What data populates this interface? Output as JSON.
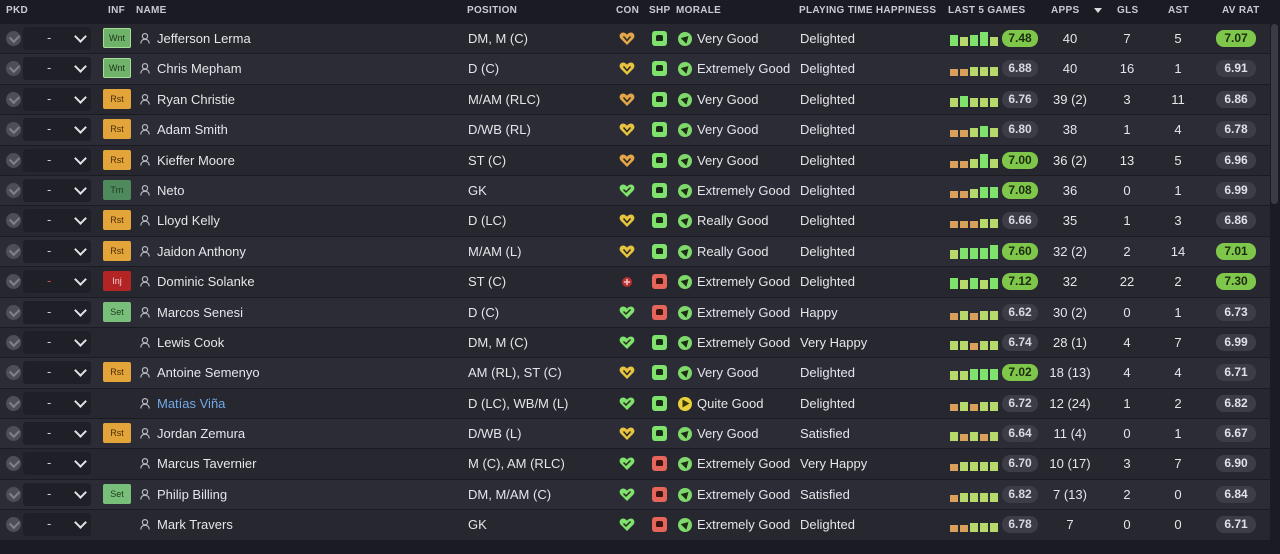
{
  "headers": {
    "pkd": "PKD",
    "inf": "INF",
    "name": "NAME",
    "position": "POSITION",
    "con": "CON",
    "shp": "SHP",
    "morale": "MORALE",
    "pth": "PLAYING TIME HAPPINESS",
    "last5": "LAST 5 GAMES",
    "apps": "APPS",
    "gls": "GLS",
    "ast": "AST",
    "avrat": "AV RAT"
  },
  "colors": {
    "form_green": "#7fe26d",
    "form_lightgreen": "#b7d86a",
    "form_orange": "#d9a05b",
    "form_red": "#d96a4a",
    "rating_green": "#7fc74a"
  },
  "players": [
    {
      "selection": "-",
      "inf": "Wnt",
      "name": "Jefferson Lerma",
      "position": "DM, M (C)",
      "con": "fit",
      "shp": "good",
      "morale": "Very Good",
      "pth": "Delighted",
      "form": [
        3,
        2,
        3,
        4,
        2
      ],
      "last5": "7.48",
      "last5_hi": true,
      "apps": "40",
      "gls": "7",
      "ast": "5",
      "avrat": "7.07",
      "avrat_hi": true
    },
    {
      "selection": "-",
      "inf": "Wnt",
      "name": "Chris Mepham",
      "position": "D (C)",
      "con": "ok",
      "shp": "good",
      "morale": "Extremely Good",
      "pth": "Delighted",
      "form": [
        1,
        1,
        2,
        2,
        2
      ],
      "last5": "6.88",
      "last5_hi": false,
      "apps": "40",
      "gls": "16",
      "ast": "1",
      "avrat": "6.91",
      "avrat_hi": false
    },
    {
      "selection": "-",
      "inf": "Rst",
      "name": "Ryan Christie",
      "position": "M/AM (RLC)",
      "con": "fit",
      "shp": "good",
      "morale": "Very Good",
      "pth": "Delighted",
      "form": [
        2,
        3,
        2,
        2,
        2
      ],
      "last5": "6.76",
      "last5_hi": false,
      "apps": "39 (2)",
      "gls": "3",
      "ast": "11",
      "avrat": "6.86",
      "avrat_hi": false
    },
    {
      "selection": "-",
      "inf": "Rst",
      "name": "Adam Smith",
      "position": "D/WB (RL)",
      "con": "ok",
      "shp": "good",
      "morale": "Very Good",
      "pth": "Delighted",
      "form": [
        1,
        1,
        2,
        3,
        2
      ],
      "last5": "6.80",
      "last5_hi": false,
      "apps": "38",
      "gls": "1",
      "ast": "4",
      "avrat": "6.78",
      "avrat_hi": false
    },
    {
      "selection": "-",
      "inf": "Rst",
      "name": "Kieffer Moore",
      "position": "ST (C)",
      "con": "fit",
      "shp": "good",
      "morale": "Very Good",
      "pth": "Delighted",
      "form": [
        1,
        1,
        2,
        4,
        2
      ],
      "last5": "7.00",
      "last5_hi": true,
      "apps": "36 (2)",
      "gls": "13",
      "ast": "5",
      "avrat": "6.96",
      "avrat_hi": false
    },
    {
      "selection": "-",
      "inf": "Trn",
      "name": "Neto",
      "position": "GK",
      "con": "full",
      "shp": "good",
      "morale": "Extremely Good",
      "pth": "Delighted",
      "form": [
        1,
        1,
        2,
        3,
        3
      ],
      "last5": "7.08",
      "last5_hi": true,
      "apps": "36",
      "gls": "0",
      "ast": "1",
      "avrat": "6.99",
      "avrat_hi": false
    },
    {
      "selection": "-",
      "inf": "Rst",
      "name": "Lloyd Kelly",
      "position": "D (LC)",
      "con": "ok",
      "shp": "good",
      "morale": "Really Good",
      "pth": "Delighted",
      "form": [
        1,
        1,
        1,
        2,
        2
      ],
      "last5": "6.66",
      "last5_hi": false,
      "apps": "35",
      "gls": "1",
      "ast": "3",
      "avrat": "6.86",
      "avrat_hi": false
    },
    {
      "selection": "-",
      "inf": "Rst",
      "name": "Jaidon Anthony",
      "position": "M/AM (L)",
      "con": "ok",
      "shp": "good",
      "morale": "Really Good",
      "pth": "Delighted",
      "form": [
        2,
        3,
        3,
        3,
        4
      ],
      "last5": "7.60",
      "last5_hi": true,
      "apps": "32 (2)",
      "gls": "2",
      "ast": "14",
      "avrat": "7.01",
      "avrat_hi": true
    },
    {
      "selection": "-",
      "inf": "Inj",
      "name": "Dominic Solanke",
      "position": "ST (C)",
      "con": "injured",
      "shp": "bad",
      "morale": "Extremely Good",
      "pth": "Delighted",
      "form": [
        3,
        2,
        3,
        2,
        3
      ],
      "last5": "7.12",
      "last5_hi": true,
      "apps": "32",
      "gls": "22",
      "ast": "2",
      "avrat": "7.30",
      "avrat_hi": true
    },
    {
      "selection": "-",
      "inf": "Set",
      "name": "Marcos Senesi",
      "position": "D (C)",
      "con": "full",
      "shp": "bad",
      "morale": "Extremely Good",
      "pth": "Happy",
      "form": [
        1,
        2,
        1,
        2,
        2
      ],
      "last5": "6.62",
      "last5_hi": false,
      "apps": "30 (2)",
      "gls": "0",
      "ast": "1",
      "avrat": "6.73",
      "avrat_hi": false
    },
    {
      "selection": "-",
      "inf": "",
      "name": "Lewis Cook",
      "position": "DM, M (C)",
      "con": "full",
      "shp": "good",
      "morale": "Extremely Good",
      "pth": "Very Happy",
      "form": [
        2,
        2,
        1,
        2,
        2
      ],
      "last5": "6.74",
      "last5_hi": false,
      "apps": "28 (1)",
      "gls": "4",
      "ast": "7",
      "avrat": "6.99",
      "avrat_hi": false
    },
    {
      "selection": "-",
      "inf": "Rst",
      "name": "Antoine Semenyo",
      "position": "AM (RL), ST (C)",
      "con": "ok",
      "shp": "good",
      "morale": "Very Good",
      "pth": "Delighted",
      "form": [
        2,
        2,
        3,
        3,
        3
      ],
      "last5": "7.02",
      "last5_hi": true,
      "apps": "18 (13)",
      "gls": "4",
      "ast": "4",
      "avrat": "6.71",
      "avrat_hi": false
    },
    {
      "selection": "-",
      "inf": "",
      "name": "Matías Viña",
      "position": "D (LC), WB/M (L)",
      "con": "full",
      "shp": "good",
      "morale": "Quite Good",
      "pth": "Delighted",
      "form": [
        1,
        2,
        1,
        2,
        2
      ],
      "last5": "6.72",
      "last5_hi": false,
      "apps": "12 (24)",
      "gls": "1",
      "ast": "2",
      "avrat": "6.82",
      "avrat_hi": false,
      "link": true
    },
    {
      "selection": "-",
      "inf": "Rst",
      "name": "Jordan Zemura",
      "position": "D/WB (L)",
      "con": "ok",
      "shp": "good",
      "morale": "Very Good",
      "pth": "Satisfied",
      "form": [
        2,
        1,
        2,
        1,
        2
      ],
      "last5": "6.64",
      "last5_hi": false,
      "apps": "11 (4)",
      "gls": "0",
      "ast": "1",
      "avrat": "6.67",
      "avrat_hi": false
    },
    {
      "selection": "-",
      "inf": "",
      "name": "Marcus Tavernier",
      "position": "M (C), AM (RLC)",
      "con": "full",
      "shp": "bad",
      "morale": "Extremely Good",
      "pth": "Very Happy",
      "form": [
        1,
        2,
        2,
        2,
        2
      ],
      "last5": "6.70",
      "last5_hi": false,
      "apps": "10 (17)",
      "gls": "3",
      "ast": "7",
      "avrat": "6.90",
      "avrat_hi": false
    },
    {
      "selection": "-",
      "inf": "Set",
      "name": "Philip Billing",
      "position": "DM, M/AM (C)",
      "con": "full",
      "shp": "bad",
      "morale": "Extremely Good",
      "pth": "Satisfied",
      "form": [
        1,
        2,
        2,
        2,
        2
      ],
      "last5": "6.82",
      "last5_hi": false,
      "apps": "7 (13)",
      "gls": "2",
      "ast": "0",
      "avrat": "6.84",
      "avrat_hi": false
    },
    {
      "selection": "-",
      "inf": "",
      "name": "Mark Travers",
      "position": "GK",
      "con": "full",
      "shp": "bad",
      "morale": "Extremely Good",
      "pth": "Delighted",
      "form": [
        1,
        1,
        2,
        2,
        2
      ],
      "last5": "6.78",
      "last5_hi": false,
      "apps": "7",
      "gls": "0",
      "ast": "0",
      "avrat": "6.71",
      "avrat_hi": false
    }
  ]
}
